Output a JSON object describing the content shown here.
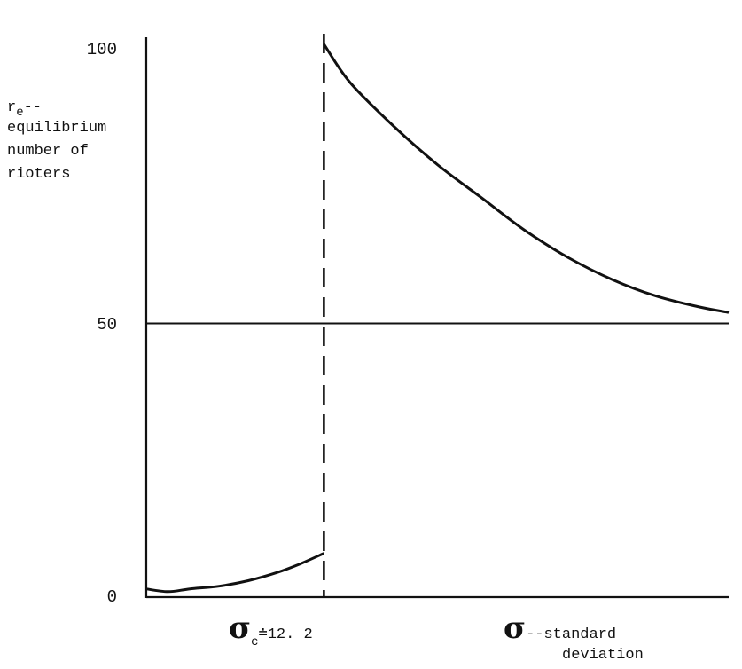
{
  "chart_data": {
    "type": "line",
    "title": "",
    "ylabel_lines": [
      "r",
      "--",
      "equilibrium",
      "number of",
      "rioters"
    ],
    "ylabel_subscript": "e",
    "xlabel": {
      "symbol": "σ",
      "text": "--standard",
      "text_line2": "deviation"
    },
    "yticks": [
      "0",
      "50",
      "100"
    ],
    "ylim": [
      0,
      100
    ],
    "critical_value": {
      "symbol": "σ",
      "subscript": "c",
      "label": "≐12. 2",
      "x": 12.2
    },
    "xlim": [
      0,
      40
    ],
    "reference_line_y": 50,
    "series": [
      {
        "segment": "below_critical",
        "x": [
          0,
          1.5,
          3,
          5,
          7,
          9,
          10.5,
          12.2
        ],
        "y": [
          1.5,
          1.0,
          1.5,
          2.0,
          3.0,
          4.5,
          6.0,
          8.0
        ]
      },
      {
        "segment": "above_critical",
        "x": [
          12.2,
          14,
          17,
          20,
          23,
          26,
          29,
          32,
          35,
          38,
          40
        ],
        "y": [
          101,
          94,
          86,
          79,
          73,
          67,
          62,
          58,
          55,
          53,
          52
        ]
      }
    ],
    "grid": false,
    "legend": "none",
    "colors": {
      "ink": "#111111",
      "background": "#ffffff"
    }
  }
}
